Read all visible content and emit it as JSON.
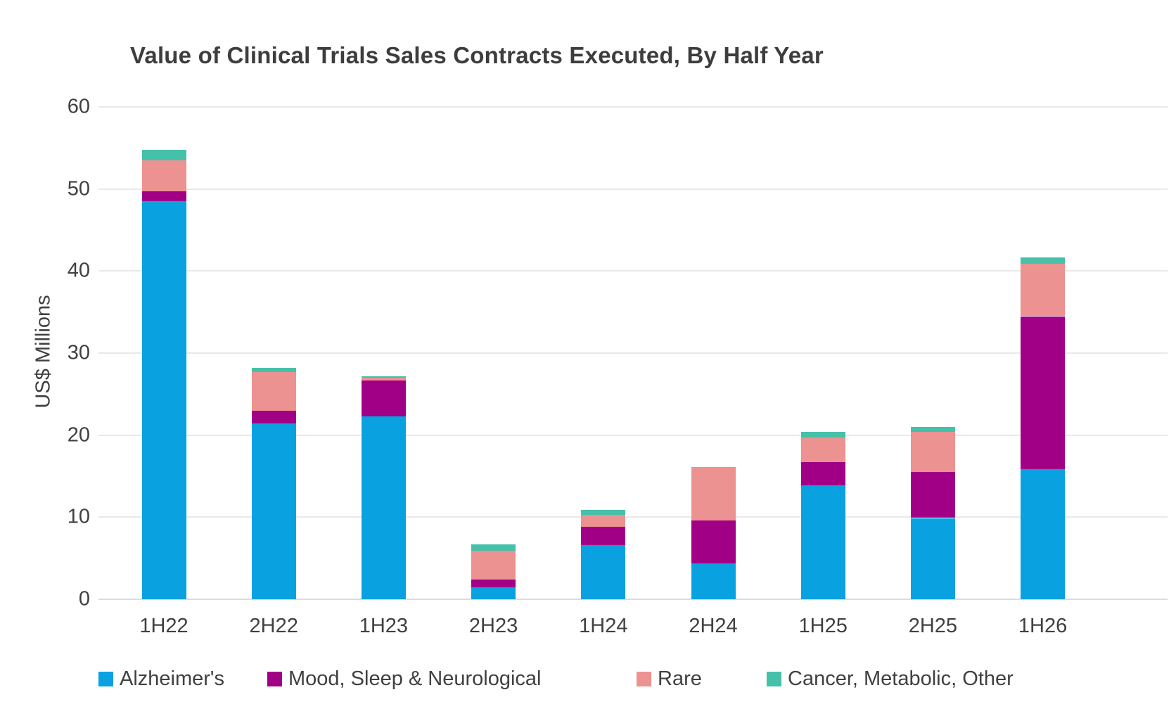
{
  "title": "Value of Clinical Trials Sales Contracts Executed, By Half Year",
  "y_axis_label": "US$ Millions",
  "chart_data": {
    "type": "bar",
    "stacked": true,
    "title": "Value of Clinical Trials Sales Contracts Executed, By Half Year",
    "ylabel": "US$ Millions",
    "xlabel": "",
    "ylim": [
      0,
      60
    ],
    "ytick_step": 10,
    "grid": true,
    "legend_position": "bottom",
    "categories": [
      "1H22",
      "2H22",
      "1H23",
      "2H23",
      "1H24",
      "2H24",
      "1H25",
      "2H25",
      "1H26"
    ],
    "series": [
      {
        "name": "Alzheimer's",
        "color": "#09A1E0",
        "values": [
          48.5,
          21.4,
          22.3,
          1.5,
          6.6,
          4.4,
          13.9,
          9.9,
          15.9
        ]
      },
      {
        "name": "Mood, Sleep & Neurological",
        "color": "#A10086",
        "values": [
          1.2,
          1.6,
          4.4,
          0.9,
          2.2,
          5.2,
          2.8,
          5.6,
          18.6
        ]
      },
      {
        "name": "Rare",
        "color": "#EC9290",
        "values": [
          3.8,
          4.7,
          0.3,
          3.5,
          1.5,
          6.5,
          3.0,
          4.9,
          6.4
        ]
      },
      {
        "name": "Cancer, Metabolic, Other",
        "color": "#45C0A9",
        "values": [
          1.3,
          0.5,
          0.2,
          0.8,
          0.6,
          0,
          0.7,
          0.6,
          0.8
        ]
      }
    ],
    "totals": [
      54.8,
      28.2,
      27.2,
      6.7,
      10.9,
      16.1,
      20.4,
      21.0,
      41.7
    ]
  }
}
